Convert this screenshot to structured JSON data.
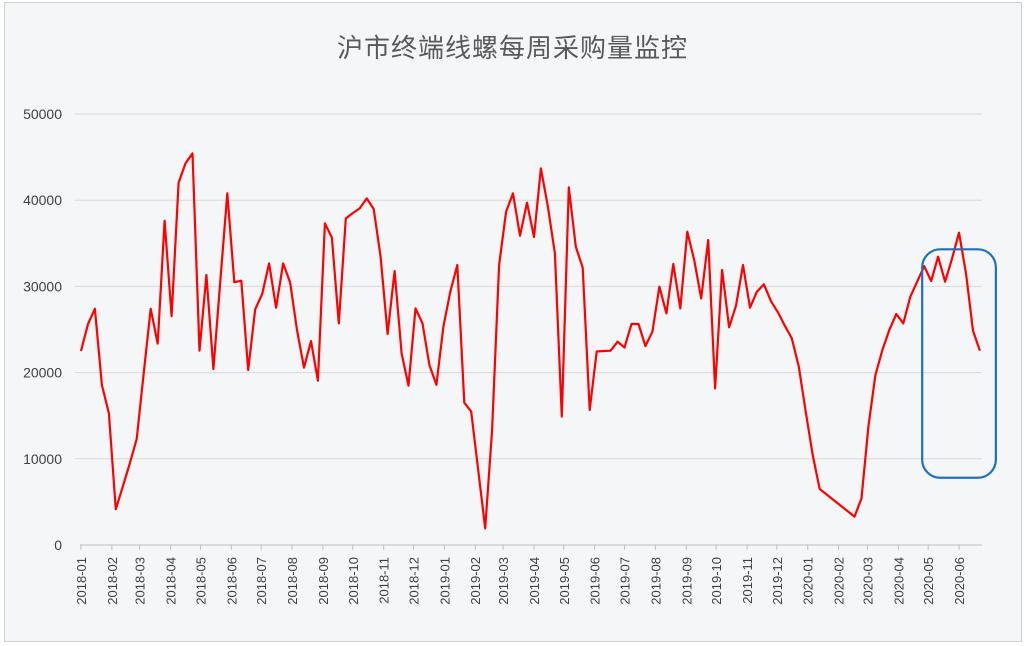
{
  "chart_data": {
    "type": "line",
    "title": "沪市终端线螺每周采购量监控",
    "xlabel": "",
    "ylabel": "",
    "ylim": [
      0,
      50000
    ],
    "yticks": [
      0,
      10000,
      20000,
      30000,
      40000,
      50000
    ],
    "xticks": [
      "2018-01",
      "2018-02",
      "2018-03",
      "2018-04",
      "2018-05",
      "2018-06",
      "2018-07",
      "2018-08",
      "2018-09",
      "2018-10",
      "2018-11",
      "2018-12",
      "2019-01",
      "2019-02",
      "2019-03",
      "2019-04",
      "2019-05",
      "2019-06",
      "2019-07",
      "2019-08",
      "2019-09",
      "2019-10",
      "2019-11",
      "2019-12",
      "2020-01",
      "2020-02",
      "2020-03",
      "2020-04",
      "2020-05",
      "2020-06"
    ],
    "grid": "horizontal",
    "legend": "none",
    "frequency": "weekly",
    "start_date": "2018-01-01",
    "series": [
      {
        "color": "#ff0000",
        "values": [
          22500,
          25640,
          27400,
          18560,
          15270,
          4140,
          6770,
          9470,
          12300,
          19910,
          27400,
          23360,
          37620,
          26560,
          42030,
          44270,
          45430,
          22540,
          31320,
          20420,
          30740,
          40790,
          30470,
          30660,
          20300,
          27340,
          29120,
          32670,
          27530,
          32670,
          30470,
          24940,
          20570,
          23660,
          19060,
          37310,
          35650,
          25710,
          37890,
          38500,
          39050,
          40210,
          38980,
          33450,
          24480,
          31780,
          22230,
          18480,
          27450,
          25710,
          20880,
          18600,
          25330,
          29390,
          32480,
          16510,
          15470,
          8700,
          1930,
          13340,
          32480,
          38670,
          40790,
          35880,
          39710,
          35730,
          43690,
          39250,
          33830,
          14890,
          41490,
          34610,
          32170,
          15660,
          22450,
          22500,
          22540,
          23590,
          22900,
          25640,
          25640,
          23080,
          24750,
          29970,
          26870,
          32600,
          27450,
          36350,
          33060,
          28610,
          35380,
          18170,
          31900,
          25250,
          27760,
          32480,
          27530,
          29390,
          30240,
          28300,
          26990,
          25440,
          23970,
          20690,
          15470,
          10440,
          6500,
          null,
          null,
          null,
          null,
          3290,
          5410,
          13730,
          19720,
          22620,
          24940,
          26800,
          25710,
          28810,
          30550,
          32360,
          30620,
          33450,
          30550,
          33250,
          36230,
          31510,
          24860,
          22540
        ]
      }
    ],
    "annotation": {
      "shape": "rounded-rectangle",
      "color": "#1f6fbf",
      "date_range": [
        "2020-04-25",
        "2020-07-08"
      ],
      "value_range": [
        7800,
        34300
      ]
    }
  }
}
